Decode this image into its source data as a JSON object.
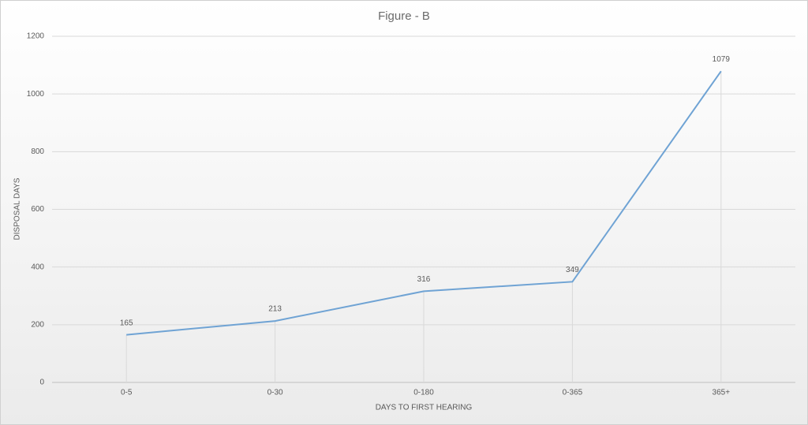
{
  "chart_data": {
    "type": "line",
    "title": "Figure - B",
    "x_label": "DAYS TO FIRST HEARING",
    "y_label": "DISPOSAL DAYS",
    "categories": [
      "0-5",
      "0-30",
      "0-180",
      "0-365",
      "365+"
    ],
    "values": [
      165,
      213,
      316,
      349,
      1079
    ],
    "color": "#6fa3d4",
    "ylim": [
      0,
      1200
    ],
    "yticks": [
      0,
      200,
      400,
      600,
      800,
      1000,
      1200
    ],
    "grid": true,
    "drop_lines": true
  }
}
